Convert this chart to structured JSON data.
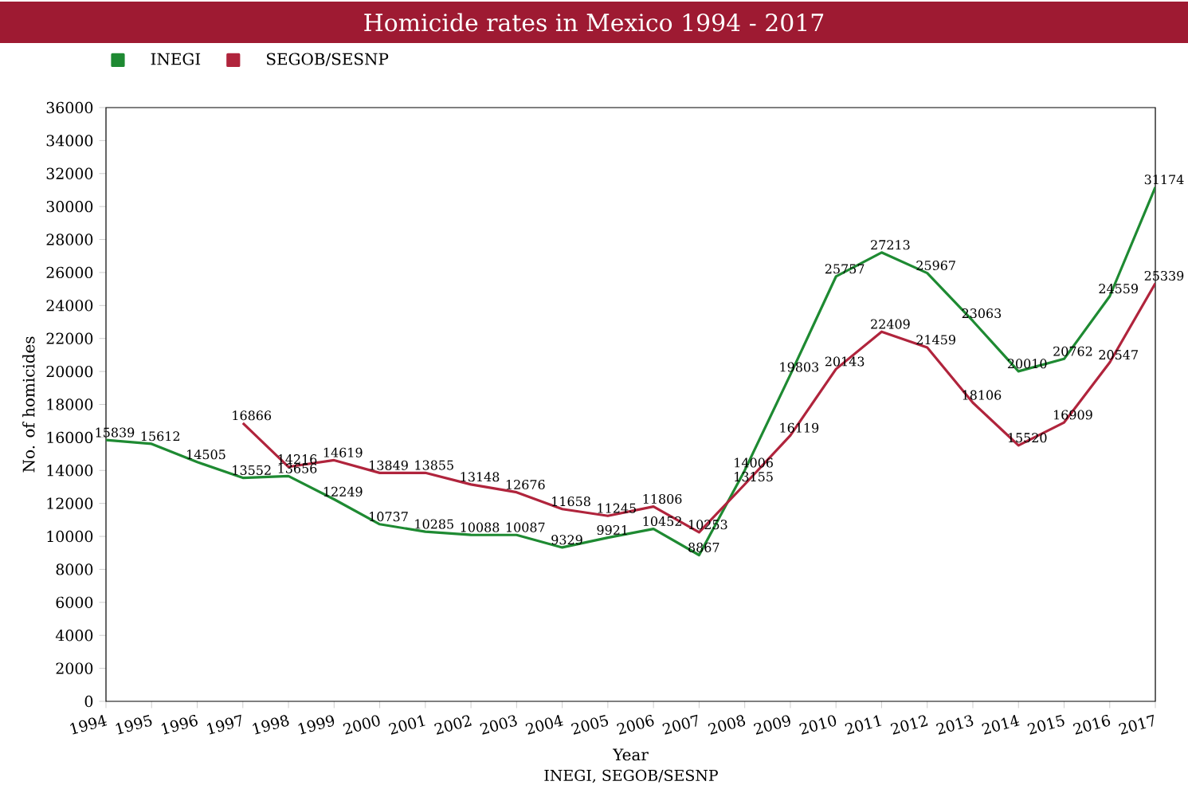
{
  "chart_data": {
    "type": "line",
    "title": "Homicide rates in Mexico 1994 - 2017",
    "xlabel": "Year",
    "ylabel": "No. of homicides",
    "annotations": [
      "INEGI, SEGOB/SESNP"
    ],
    "categories": [
      "1994",
      "1995",
      "1996",
      "1997",
      "1998",
      "1999",
      "2000",
      "2001",
      "2002",
      "2003",
      "2004",
      "2005",
      "2006",
      "2007",
      "2008",
      "2009",
      "2010",
      "2011",
      "2012",
      "2013",
      "2014",
      "2015",
      "2016",
      "2017"
    ],
    "series": [
      {
        "name": "INEGI",
        "color": "#1e8a32",
        "values": [
          15839,
          15612,
          14505,
          13552,
          13656,
          12249,
          10737,
          10285,
          10088,
          10087,
          9329,
          9921,
          10452,
          8867,
          14006,
          19803,
          25757,
          27213,
          25967,
          23063,
          20010,
          20762,
          24559,
          31174
        ]
      },
      {
        "name": "SEGOB/SESNP",
        "color": "#b0243c",
        "values": [
          null,
          null,
          null,
          16866,
          14216,
          14619,
          13849,
          13855,
          13148,
          12676,
          11658,
          11245,
          11806,
          10253,
          13155,
          16119,
          20143,
          22409,
          21459,
          18106,
          15520,
          16909,
          20547,
          25339
        ]
      }
    ],
    "ylim": [
      0,
      36000
    ],
    "yticks": [
      0,
      2000,
      4000,
      6000,
      8000,
      10000,
      12000,
      14000,
      16000,
      18000,
      20000,
      22000,
      24000,
      26000,
      28000,
      30000,
      32000,
      34000,
      36000
    ],
    "data_labels": true,
    "legend": "top left",
    "grid": false,
    "marker": "none",
    "line_style": "solid"
  }
}
